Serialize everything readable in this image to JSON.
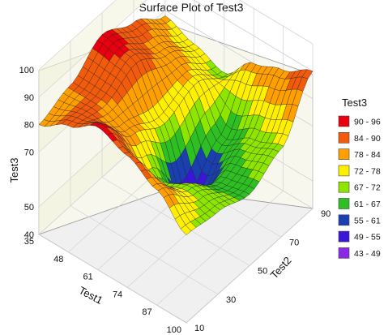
{
  "chart_data": {
    "type": "surface3d",
    "title": "Surface Plot of Test3",
    "x_axis": {
      "label": "Test1",
      "range": [
        35,
        100
      ],
      "ticks": [
        "35",
        "48",
        "61",
        "74",
        "87",
        "100"
      ]
    },
    "y_axis": {
      "label": "Test2",
      "range": [
        10,
        90
      ],
      "ticks": [
        "10",
        "30",
        "50",
        "70",
        "90"
      ]
    },
    "z_axis": {
      "label": "Test3",
      "range": [
        40,
        100
      ],
      "ticks": [
        "40",
        "50",
        "70",
        "80",
        "90",
        "100"
      ]
    },
    "legend": {
      "title": "Test3",
      "placement": "right",
      "entries": [
        {
          "label": "90 - 96",
          "color": "#e8000e"
        },
        {
          "label": "84 - 90",
          "color": "#f25a0c"
        },
        {
          "label": "78 - 84",
          "color": "#ff9f00"
        },
        {
          "label": "72 - 78",
          "color": "#ffef00"
        },
        {
          "label": "67 - 72",
          "color": "#8ee600"
        },
        {
          "label": "61 - 67",
          "color": "#2ec022"
        },
        {
          "label": "55 - 61",
          "color": "#1a3fb0"
        },
        {
          "label": "49 - 55",
          "color": "#3b16d8"
        },
        {
          "label": "43 - 49",
          "color": "#8b2ae6"
        }
      ]
    },
    "surface": {
      "grid_x": [
        35,
        48,
        61,
        74,
        87,
        100
      ],
      "grid_y": [
        10,
        30,
        50,
        70,
        90
      ],
      "z": [
        [
          80,
          84,
          92,
          86,
          78
        ],
        [
          86,
          84,
          90,
          82,
          74
        ],
        [
          92,
          80,
          74,
          78,
          70
        ],
        [
          88,
          68,
          50,
          62,
          80
        ],
        [
          82,
          72,
          64,
          68,
          84
        ],
        [
          72,
          70,
          66,
          72,
          90
        ]
      ]
    }
  }
}
